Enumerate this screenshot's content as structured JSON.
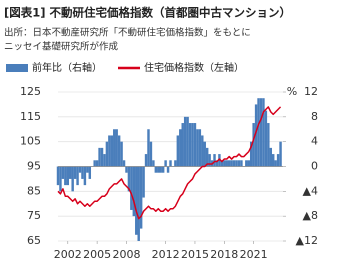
{
  "chart_data": {
    "type": "combo",
    "title": "[図表1] 不動研住宅価格指数（首都圏中古マンション）",
    "source": [
      "出所：日本不動産研究所「不動研住宅価格指数」をもとに",
      "ニッセイ基礎研究所が作成"
    ],
    "y2_label": "%",
    "x": [
      2001,
      2001.25,
      2001.5,
      2001.75,
      2002,
      2002.25,
      2002.5,
      2002.75,
      2003,
      2003.25,
      2003.5,
      2003.75,
      2004,
      2004.25,
      2004.5,
      2004.75,
      2005,
      2005.25,
      2005.5,
      2005.75,
      2006,
      2006.25,
      2006.5,
      2006.75,
      2007,
      2007.25,
      2007.5,
      2007.75,
      2008,
      2008.25,
      2008.5,
      2008.75,
      2009,
      2009.25,
      2009.5,
      2009.75,
      2010,
      2010.25,
      2010.5,
      2010.75,
      2011,
      2011.25,
      2011.5,
      2011.75,
      2012,
      2012.25,
      2012.5,
      2012.75,
      2013,
      2013.25,
      2013.5,
      2013.75,
      2014,
      2014.25,
      2014.5,
      2014.75,
      2015,
      2015.25,
      2015.5,
      2015.75,
      2016,
      2016.25,
      2016.5,
      2016.75,
      2017,
      2017.25,
      2017.5,
      2017.75,
      2018,
      2018.25,
      2018.5,
      2018.75,
      2019,
      2019.25,
      2019.5,
      2019.75,
      2020,
      2020.25,
      2020.5,
      2020.75,
      2021,
      2021.25,
      2021.5,
      2021.75,
      2022,
      2022.25,
      2022.5,
      2022.75,
      2023,
      2023.25,
      2023.5,
      2023.75
    ],
    "series": [
      {
        "name": "前年比（右軸）",
        "type": "bar",
        "axis": "y2",
        "color": "#4a7ebb",
        "values": [
          -3,
          -4,
          -2,
          -3,
          -3,
          -2,
          -4,
          -2,
          -3,
          -1,
          -2,
          -3,
          -1,
          -2,
          0,
          1,
          1,
          3,
          3,
          2,
          4,
          5,
          5,
          6,
          6,
          5,
          4,
          1,
          -1,
          -4,
          -7,
          -8,
          -11,
          -12,
          -10,
          -5,
          2,
          6,
          4,
          1,
          -1,
          -1,
          -1,
          -1,
          1,
          -1,
          1,
          0,
          1,
          5,
          6,
          7,
          8,
          8,
          7,
          7,
          7,
          6,
          6,
          5,
          4,
          3,
          2,
          1,
          2,
          1,
          2,
          1,
          1,
          1,
          1,
          1,
          1,
          1,
          1,
          1,
          0,
          1,
          1,
          4,
          7,
          10,
          11,
          11,
          11,
          9,
          7,
          3,
          2,
          1,
          2,
          4
        ]
      },
      {
        "name": "住宅価格指数（左軸）",
        "type": "line",
        "axis": "y",
        "color": "#d7001b",
        "values": [
          85,
          84,
          86,
          83,
          83,
          82,
          81,
          82,
          80,
          81,
          80,
          79,
          80,
          79,
          80,
          81,
          81,
          82,
          83,
          83,
          84,
          86,
          87,
          88,
          88,
          89,
          90,
          88,
          87,
          86,
          84,
          81,
          77,
          74,
          75,
          77,
          78,
          79,
          78,
          78,
          77,
          78,
          77,
          77,
          78,
          77,
          78,
          78,
          79,
          81,
          83,
          84,
          86,
          88,
          89,
          90,
          92,
          93,
          94,
          95,
          95,
          96,
          96,
          96,
          97,
          97,
          98,
          97,
          98,
          98,
          99,
          98,
          99,
          99,
          100,
          99,
          99,
          100,
          101,
          103,
          106,
          109,
          112,
          114,
          117,
          118,
          119,
          117,
          116,
          117,
          118,
          119
        ]
      }
    ],
    "xlim": [
      2001,
      2024
    ],
    "xticks": [
      2002,
      2005,
      2008,
      2012,
      2015,
      2018,
      2021
    ],
    "ylim": [
      65,
      125
    ],
    "yticks": [
      65,
      75,
      85,
      95,
      105,
      115,
      125
    ],
    "y2lim": [
      -12,
      12
    ],
    "y2ticks": [
      {
        "value": -12,
        "label": "▲12"
      },
      {
        "value": -8,
        "label": "▲8"
      },
      {
        "value": -4,
        "label": "▲4"
      },
      0,
      4,
      8,
      12
    ],
    "grid": true
  }
}
